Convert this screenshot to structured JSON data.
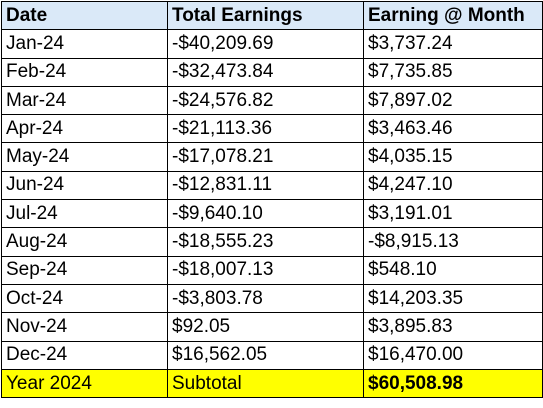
{
  "colors": {
    "header_bg": "#dae9f8",
    "subtotal_bg": "#ffff00",
    "grid_line": "#000000",
    "text": "#000000"
  },
  "table": {
    "headers": [
      "Date",
      "Total Earnings",
      "Earning @ Month"
    ],
    "rows": [
      [
        "Jan-24",
        "-$40,209.69",
        "$3,737.24"
      ],
      [
        "Feb-24",
        "-$32,473.84",
        "$7,735.85"
      ],
      [
        "Mar-24",
        "-$24,576.82",
        "$7,897.02"
      ],
      [
        "Apr-24",
        "-$21,113.36",
        "$3,463.46"
      ],
      [
        "May-24",
        "-$17,078.21",
        "$4,035.15"
      ],
      [
        "Jun-24",
        "-$12,831.11",
        "$4,247.10"
      ],
      [
        "Jul-24",
        "-$9,640.10",
        "$3,191.01"
      ],
      [
        "Aug-24",
        "-$18,555.23",
        "-$8,915.13"
      ],
      [
        "Sep-24",
        "-$18,007.13",
        "$548.10"
      ],
      [
        "Oct-24",
        "-$3,803.78",
        "$14,203.35"
      ],
      [
        "Nov-24",
        "$92.05",
        "$3,895.83"
      ],
      [
        "Dec-24",
        "$16,562.05",
        "$16,470.00"
      ]
    ],
    "subtotal": {
      "label": "Year 2024",
      "caption": "Subtotal",
      "value": "$60,508.98"
    }
  }
}
